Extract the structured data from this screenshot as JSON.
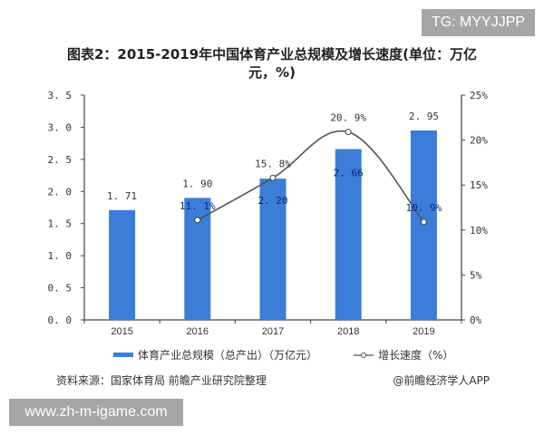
{
  "title": "图表2：2015-2019年中国体育产业总规模及增长速度(单位：万亿元，%)",
  "watermarks": {
    "top_right": "TG: MYYJJPP",
    "bottom_left": "www.zh-m-igame.com"
  },
  "legend": {
    "bar_label": "体育产业总规模（总产出）（万亿元）",
    "line_label": "增长速度（%）"
  },
  "footer": {
    "source": "资料来源：国家体育局 前瞻产业研究院整理",
    "credit": "@前瞻经济学人APP"
  },
  "colors": {
    "bar": "#3b7dd8",
    "line": "#555555",
    "watermark_box": "#a6a6a6"
  },
  "axes": {
    "left_ticks": [
      "0.0",
      "0.5",
      "1.0",
      "1.5",
      "2.0",
      "2.5",
      "3.0",
      "3.5"
    ],
    "right_ticks": [
      "0%",
      "5%",
      "10%",
      "15%",
      "20%",
      "25%"
    ]
  },
  "chart_data": {
    "type": "bar",
    "title": "图表2：2015-2019年中国体育产业总规模及增长速度(单位：万亿元，%)",
    "categories": [
      "2015",
      "2016",
      "2017",
      "2018",
      "2019"
    ],
    "series": [
      {
        "name": "体育产业总规模（总产出）（万亿元）",
        "type": "bar",
        "axis": "left",
        "values": [
          1.71,
          1.9,
          2.2,
          2.66,
          2.95
        ],
        "labels": [
          "1.71",
          "1.90",
          "2.20",
          "2.66",
          "2.95"
        ]
      },
      {
        "name": "增长速度（%）",
        "type": "line",
        "axis": "right",
        "values": [
          null,
          11.1,
          15.8,
          20.9,
          10.9
        ],
        "labels": [
          "",
          "11.1%",
          "15.8%",
          "20.9%",
          "10.9%"
        ]
      }
    ],
    "xlabel": "",
    "ylabel": "",
    "ylim": [
      0,
      3.5
    ],
    "y2lim": [
      0,
      25
    ],
    "grid": false,
    "legend_position": "bottom"
  }
}
